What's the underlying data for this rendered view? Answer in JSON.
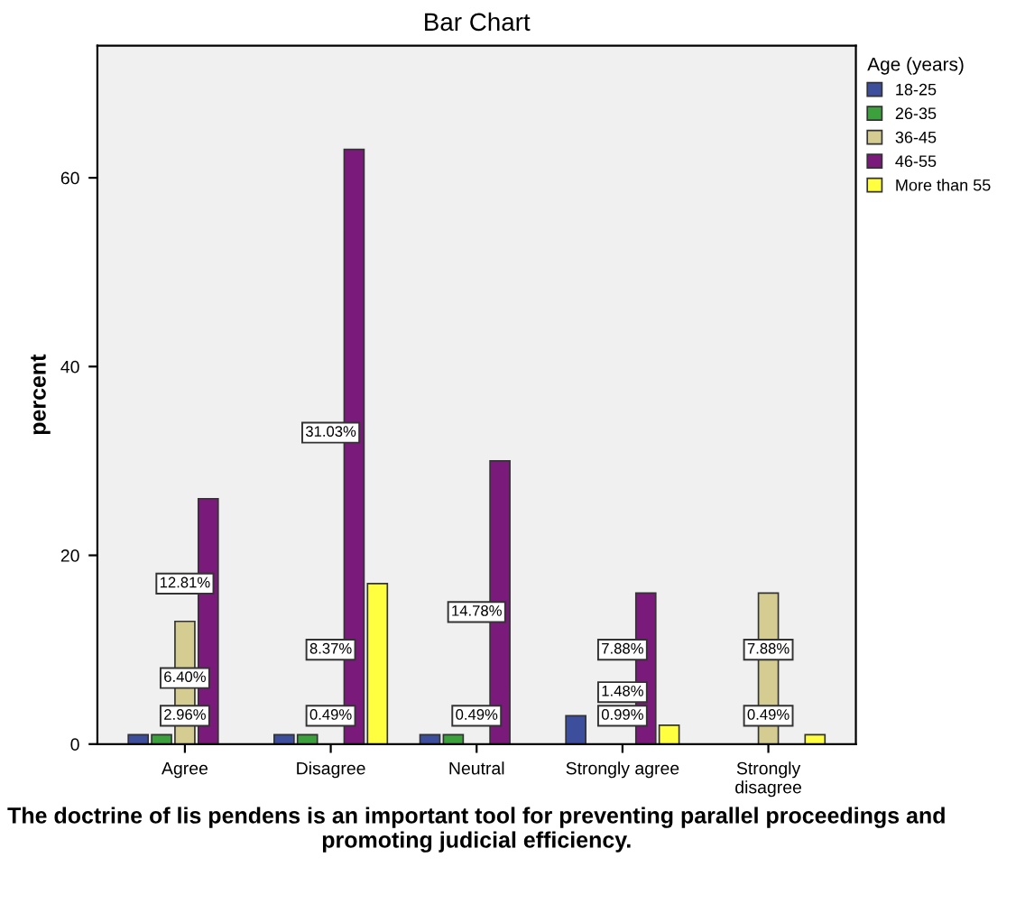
{
  "chart_data": {
    "type": "bar",
    "title": "Bar Chart",
    "xlabel": "The doctrine of lis pendens is an important tool for preventing parallel proceedings and promoting judicial efficiency.",
    "ylabel": "percent",
    "legend_title": "Age (years)",
    "categories": [
      "Agree",
      "Disagree",
      "Neutral",
      "Strongly agree",
      "Strongly\ndisagree"
    ],
    "series": [
      {
        "name": "18-25",
        "color": "#3c4e9c",
        "values": [
          1,
          1,
          1,
          3,
          null
        ]
      },
      {
        "name": "26-35",
        "color": "#3ca03c",
        "values": [
          1,
          1,
          1,
          null,
          null
        ]
      },
      {
        "name": "36-45",
        "color": "#d4cc90",
        "values": [
          13,
          null,
          null,
          null,
          16
        ]
      },
      {
        "name": "46-55",
        "color": "#7a1a7a",
        "values": [
          26,
          63,
          30,
          16,
          null
        ]
      },
      {
        "name": "More than 55",
        "color": "#ffff40",
        "values": [
          null,
          17,
          null,
          2,
          1
        ]
      }
    ],
    "annotations": [
      {
        "text": "2.96%",
        "x": "Agree",
        "y": 3
      },
      {
        "text": "6.40%",
        "x": "Agree",
        "y": 7
      },
      {
        "text": "12.81%",
        "x": "Agree",
        "y": 17
      },
      {
        "text": "0.49%",
        "x": "Disagree",
        "y": 3
      },
      {
        "text": "31.03%",
        "x": "Disagree",
        "y": 33
      },
      {
        "text": "8.37%",
        "x": "Disagree",
        "y": 10
      },
      {
        "text": "0.49%",
        "x": "Neutral",
        "y": 3
      },
      {
        "text": "14.78%",
        "x": "Neutral",
        "y": 14
      },
      {
        "text": "1.48%",
        "x": "Strongly agree",
        "y": 5.5
      },
      {
        "text": "7.88%",
        "x": "Strongly agree",
        "y": 10
      },
      {
        "text": "0.99%",
        "x": "Strongly agree",
        "y": 3
      },
      {
        "text": "7.88%",
        "x": "Strongly\ndisagree",
        "y": 10
      },
      {
        "text": "0.49%",
        "x": "Strongly\ndisagree",
        "y": 3
      }
    ],
    "ylim": [
      0,
      74
    ],
    "yticks": [
      0,
      20,
      40,
      60
    ],
    "grid": false,
    "legend": "top right"
  }
}
